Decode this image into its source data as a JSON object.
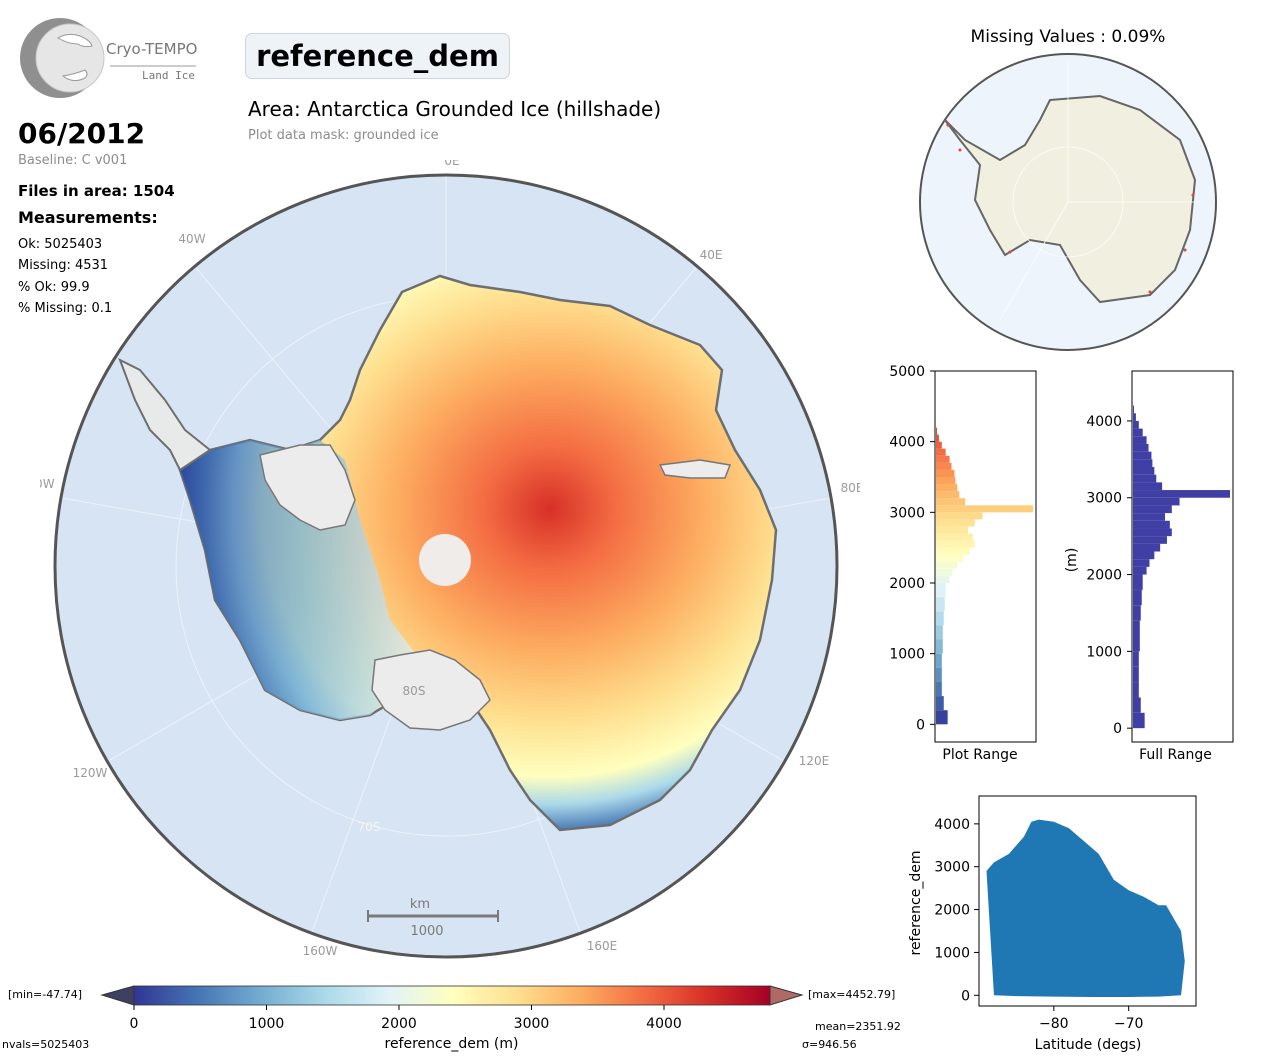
{
  "logo": {
    "name": "Cryo-TEMPO",
    "sub": "Land Ice"
  },
  "header": {
    "parameter": "reference_dem",
    "area": "Area: Antarctica Grounded Ice (hillshade)",
    "mask": "Plot data mask: grounded ice"
  },
  "info": {
    "date": "06/2012",
    "baseline": "Baseline: C v001",
    "files": "Files in area: 1504",
    "measurements_title": "Measurements:",
    "ok": "Ok: 5025403",
    "missing": "Missing: 4531",
    "pct_ok": "% Ok: 99.9",
    "pct_missing": "% Missing: 0.1"
  },
  "map": {
    "lon_labels": {
      "l0": "0E",
      "l40w": "40W",
      "l40e": "40E",
      "l80w": "80W",
      "l80e": "80E",
      "l120w": "120W",
      "l120e": "120E",
      "l160w": "160W",
      "l160e": "160E"
    },
    "lat_labels": {
      "l80s": "80S",
      "l70s": "70S"
    },
    "scalebar": {
      "unit": "km",
      "value": "1000"
    }
  },
  "inset": {
    "title": "Missing Values : 0.09%"
  },
  "colorbar": {
    "label": "reference_dem (m)",
    "ticks": [
      "0",
      "1000",
      "2000",
      "3000",
      "4000"
    ],
    "min": "[min=-47.74]",
    "max": "[max=4452.79]",
    "nvals": "nvals=5025403",
    "mean": "mean=2351.92",
    "sigma": "σ=946.56",
    "colors": [
      "#313695",
      "#4575b4",
      "#74add1",
      "#abd9e9",
      "#e0f3f8",
      "#ffffbf",
      "#fee090",
      "#fdae61",
      "#f46d43",
      "#d73027",
      "#a50026"
    ]
  },
  "histograms": {
    "plot_range_label": "Plot Range",
    "full_range_label": "Full Range",
    "unit_label": "(m)",
    "plot_ticks": [
      "0",
      "1000",
      "2000",
      "3000",
      "4000",
      "5000"
    ],
    "full_ticks": [
      "0",
      "1000",
      "2000",
      "3000",
      "4000"
    ],
    "full_color": "#3f3fa6"
  },
  "scatter": {
    "xlabel": "Latitude (degs)",
    "ylabel": "reference_dem",
    "xticks": [
      "−80",
      "−70"
    ],
    "yticks": [
      "0",
      "1000",
      "2000",
      "3000",
      "4000"
    ],
    "color": "#1f77b4"
  },
  "chart_data": [
    {
      "type": "heatmap",
      "title": "reference_dem",
      "subtitle": "Area: Antarctica Grounded Ice (hillshade)",
      "colorbar_label": "reference_dem (m)",
      "colorbar_range": [
        0,
        4800
      ],
      "min": -47.74,
      "max": 4452.79,
      "mean": 2351.92,
      "std": 946.56,
      "nvals": 5025403
    },
    {
      "type": "bar",
      "title": "Plot Range",
      "orientation": "horizontal",
      "ylim": [
        0,
        5000
      ],
      "bins": [
        0,
        200,
        400,
        600,
        800,
        1000,
        1200,
        1400,
        1600,
        1800,
        2000,
        2100,
        2200,
        2300,
        2400,
        2500,
        2600,
        2700,
        2800,
        2900,
        3000,
        3100,
        3200,
        3300,
        3400,
        3500,
        3600,
        3700,
        3800,
        3900,
        4000,
        4100
      ],
      "counts": [
        12,
        8,
        6,
        6,
        6,
        7,
        7,
        8,
        9,
        10,
        14,
        17,
        22,
        28,
        35,
        40,
        38,
        33,
        40,
        48,
        100,
        30,
        24,
        22,
        20,
        19,
        16,
        14,
        10,
        6,
        3,
        1
      ]
    },
    {
      "type": "bar",
      "title": "Full Range",
      "orientation": "horizontal",
      "ylabel": "(m)",
      "ylim": [
        -200,
        4600
      ],
      "bins": [
        0,
        200,
        400,
        600,
        800,
        1000,
        1200,
        1400,
        1600,
        1800,
        2000,
        2100,
        2200,
        2300,
        2400,
        2500,
        2600,
        2700,
        2800,
        2900,
        3000,
        3100,
        3200,
        3300,
        3400,
        3500,
        3600,
        3700,
        3800,
        3900,
        4000,
        4100
      ],
      "counts": [
        12,
        8,
        6,
        6,
        6,
        7,
        7,
        8,
        9,
        10,
        14,
        17,
        22,
        28,
        35,
        40,
        38,
        33,
        40,
        48,
        100,
        30,
        24,
        22,
        20,
        19,
        16,
        14,
        10,
        6,
        3,
        1
      ]
    },
    {
      "type": "scatter",
      "xlabel": "Latitude (degs)",
      "ylabel": "reference_dem",
      "xlim": [
        -90,
        -61
      ],
      "ylim": [
        -250,
        4650
      ],
      "upper_envelope": {
        "x": [
          -89,
          -88,
          -86,
          -84,
          -83,
          -82,
          -80,
          -78,
          -76,
          -74,
          -73,
          -72,
          -70,
          -68,
          -66,
          -65,
          -63,
          -62.5
        ],
        "y": [
          2900,
          3100,
          3300,
          3700,
          4050,
          4100,
          4050,
          3900,
          3600,
          3300,
          3000,
          2700,
          2450,
          2300,
          2100,
          2100,
          1500,
          800
        ]
      },
      "lower_envelope": {
        "x": [
          -88,
          -85,
          -80,
          -75,
          -70,
          -66,
          -63
        ],
        "y": [
          0,
          -20,
          -30,
          -40,
          -40,
          -30,
          0
        ]
      }
    }
  ]
}
